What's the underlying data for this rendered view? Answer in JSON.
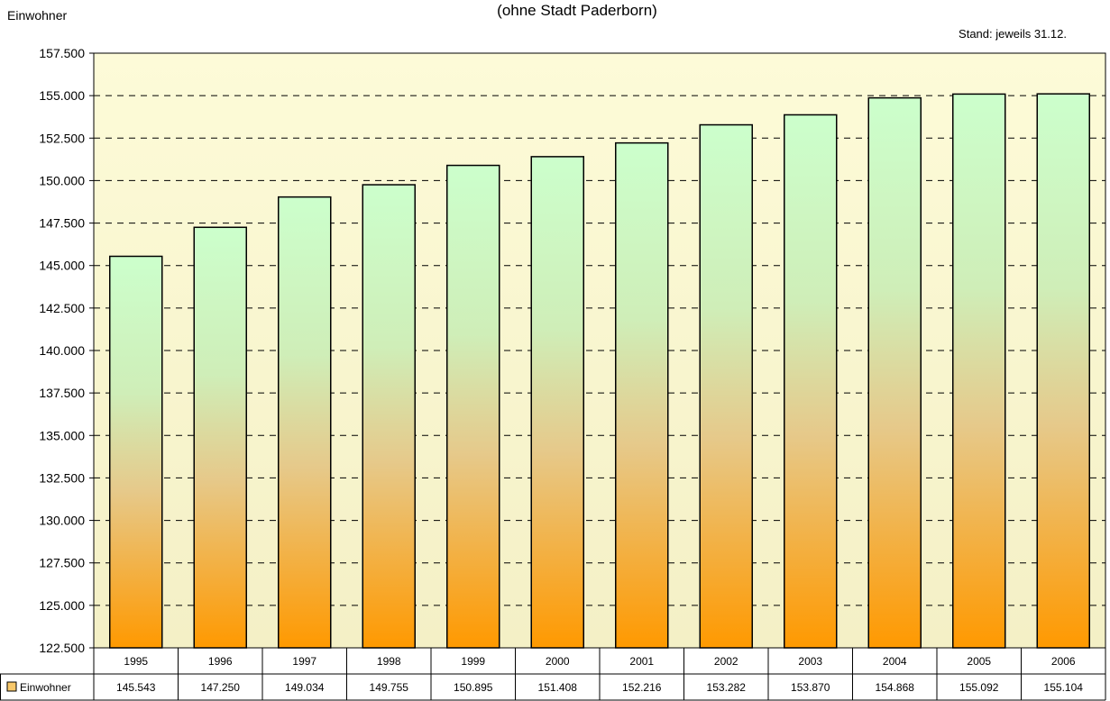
{
  "chart_data": {
    "type": "bar",
    "title": "",
    "subtitle": "(ohne Stadt Paderborn)",
    "ylabel": "Einwohner",
    "note": "Stand: jeweils 31.12.",
    "categories": [
      "1995",
      "1996",
      "1997",
      "1998",
      "1999",
      "2000",
      "2001",
      "2002",
      "2003",
      "2004",
      "2005",
      "2006"
    ],
    "series": [
      {
        "name": "Einwohner",
        "values": [
          145543,
          147250,
          149034,
          149755,
          150895,
          151408,
          152216,
          153282,
          153870,
          154868,
          155092,
          155104
        ],
        "value_labels": [
          "145.543",
          "147.250",
          "149.034",
          "149.755",
          "150.895",
          "151.408",
          "152.216",
          "153.282",
          "153.870",
          "154.868",
          "155.092",
          "155.104"
        ]
      }
    ],
    "ylim": [
      122500,
      157500
    ],
    "yticks": [
      122500,
      125000,
      127500,
      130000,
      132500,
      135000,
      137500,
      140000,
      142500,
      145000,
      147500,
      150000,
      152500,
      155000,
      157500
    ],
    "ytick_labels": [
      "122.500",
      "125.000",
      "127.500",
      "130.000",
      "132.500",
      "135.000",
      "137.500",
      "140.000",
      "142.500",
      "145.000",
      "147.500",
      "150.000",
      "152.500",
      "155.000",
      "157.500"
    ],
    "grid": true,
    "legend": "data-table",
    "colors": {
      "plot_bg_top": "#fdfbd8",
      "plot_bg_bottom": "#f4f0c6",
      "bar_top": "#ccffcc",
      "bar_bottom": "#ff9900",
      "border": "#000000"
    }
  }
}
